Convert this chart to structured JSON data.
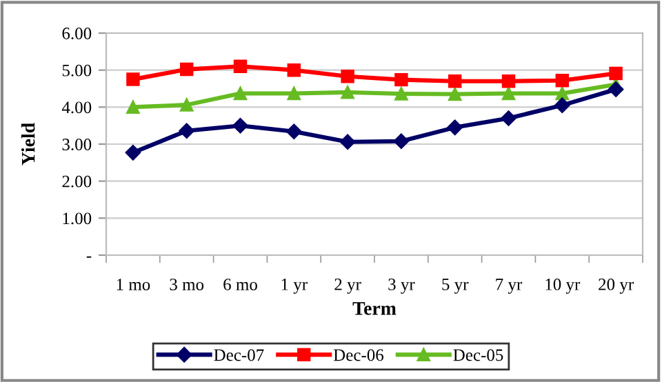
{
  "chart_data": {
    "type": "line",
    "xlabel": "Term",
    "ylabel": "Yield",
    "categories": [
      "1 mo",
      "3 mo",
      "6 mo",
      "1 yr",
      "2 yr",
      "3 yr",
      "5 yr",
      "7 yr",
      "10 yr",
      "20 yr"
    ],
    "series": [
      {
        "name": "Dec-07",
        "color": "#000066",
        "marker": "diamond",
        "values": [
          2.77,
          3.36,
          3.5,
          3.34,
          3.06,
          3.08,
          3.45,
          3.7,
          4.05,
          4.48
        ]
      },
      {
        "name": "Dec-06",
        "color": "#ff0000",
        "marker": "square",
        "values": [
          4.75,
          5.02,
          5.1,
          5.0,
          4.83,
          4.74,
          4.7,
          4.7,
          4.72,
          4.91
        ]
      },
      {
        "name": "Dec-05",
        "color": "#66bb22",
        "marker": "triangle",
        "values": [
          4.0,
          4.06,
          4.37,
          4.37,
          4.4,
          4.36,
          4.35,
          4.37,
          4.37,
          4.61
        ]
      }
    ],
    "ylim": [
      0,
      6
    ],
    "yticks": [
      {
        "value": 0,
        "label": "-"
      },
      {
        "value": 1,
        "label": "1.00"
      },
      {
        "value": 2,
        "label": "2.00"
      },
      {
        "value": 3,
        "label": "3.00"
      },
      {
        "value": 4,
        "label": "4.00"
      },
      {
        "value": 5,
        "label": "5.00"
      },
      {
        "value": 6,
        "label": "6.00"
      }
    ],
    "grid": "y",
    "legend": "bottom",
    "line_style": "solid"
  }
}
